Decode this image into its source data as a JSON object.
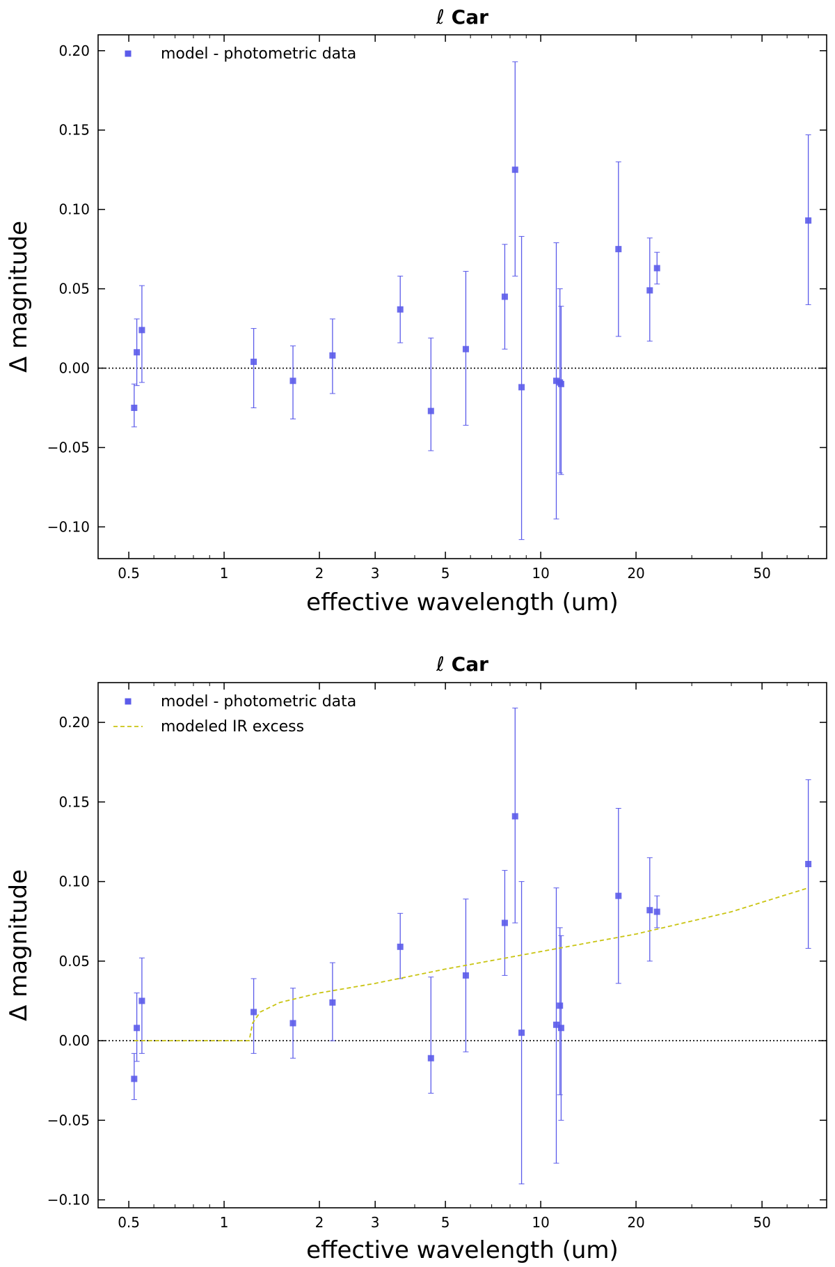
{
  "chart_data": [
    {
      "type": "scatter",
      "title_prefix": "ℓ",
      "title_main": "Car",
      "xlabel": "effective wavelength (um)",
      "ylabel": "Δ magnitude",
      "xscale": "log",
      "xlim": [
        0.4,
        80
      ],
      "ylim": [
        -0.12,
        0.21
      ],
      "yticks": [
        -0.1,
        -0.05,
        0.0,
        0.05,
        0.1,
        0.15,
        0.2
      ],
      "ytick_labels": [
        "−0.10",
        "−0.05",
        "0.00",
        "0.05",
        "0.10",
        "0.15",
        "0.20"
      ],
      "xticks": [
        0.5,
        1,
        2,
        3,
        5,
        10,
        20,
        50
      ],
      "xtick_labels": [
        "0.5",
        "1",
        "2",
        "3",
        "5",
        "10",
        "20",
        "50"
      ],
      "zero_line": true,
      "legend_position": "top-left",
      "series": [
        {
          "name": "model - photometric data",
          "kind": "errorbar",
          "color": "#5b5bea",
          "points": [
            {
              "x": 0.52,
              "y": -0.025,
              "lo": -0.037,
              "hi": -0.01
            },
            {
              "x": 0.53,
              "y": 0.01,
              "lo": -0.011,
              "hi": 0.031
            },
            {
              "x": 0.55,
              "y": 0.024,
              "lo": -0.009,
              "hi": 0.052
            },
            {
              "x": 1.24,
              "y": 0.004,
              "lo": -0.025,
              "hi": 0.025
            },
            {
              "x": 1.65,
              "y": -0.008,
              "lo": -0.032,
              "hi": 0.014
            },
            {
              "x": 2.2,
              "y": 0.008,
              "lo": -0.016,
              "hi": 0.031
            },
            {
              "x": 3.6,
              "y": 0.037,
              "lo": 0.016,
              "hi": 0.058
            },
            {
              "x": 4.5,
              "y": -0.027,
              "lo": -0.052,
              "hi": 0.019
            },
            {
              "x": 5.8,
              "y": 0.012,
              "lo": -0.036,
              "hi": 0.061
            },
            {
              "x": 7.7,
              "y": 0.045,
              "lo": 0.012,
              "hi": 0.078
            },
            {
              "x": 8.3,
              "y": 0.125,
              "lo": 0.058,
              "hi": 0.193
            },
            {
              "x": 8.7,
              "y": -0.012,
              "lo": -0.108,
              "hi": 0.083
            },
            {
              "x": 11.2,
              "y": -0.008,
              "lo": -0.095,
              "hi": 0.079
            },
            {
              "x": 11.5,
              "y": -0.009,
              "lo": -0.066,
              "hi": 0.05
            },
            {
              "x": 11.6,
              "y": -0.01,
              "lo": -0.067,
              "hi": 0.039
            },
            {
              "x": 17.6,
              "y": 0.075,
              "lo": 0.02,
              "hi": 0.13
            },
            {
              "x": 22.1,
              "y": 0.049,
              "lo": 0.017,
              "hi": 0.082
            },
            {
              "x": 23.3,
              "y": 0.063,
              "lo": 0.053,
              "hi": 0.073
            },
            {
              "x": 70.0,
              "y": 0.093,
              "lo": 0.04,
              "hi": 0.147
            }
          ]
        }
      ]
    },
    {
      "type": "scatter",
      "title_prefix": "ℓ",
      "title_main": "Car",
      "xlabel": "effective wavelength (um)",
      "ylabel": "Δ magnitude",
      "xscale": "log",
      "xlim": [
        0.4,
        80
      ],
      "ylim": [
        -0.105,
        0.225
      ],
      "yticks": [
        -0.1,
        -0.05,
        0.0,
        0.05,
        0.1,
        0.15,
        0.2
      ],
      "ytick_labels": [
        "−0.10",
        "−0.05",
        "0.00",
        "0.05",
        "0.10",
        "0.15",
        "0.20"
      ],
      "xticks": [
        0.5,
        1,
        2,
        3,
        5,
        10,
        20,
        50
      ],
      "xtick_labels": [
        "0.5",
        "1",
        "2",
        "3",
        "5",
        "10",
        "20",
        "50"
      ],
      "zero_line": true,
      "legend_position": "top-left",
      "series": [
        {
          "name": "model - photometric data",
          "kind": "errorbar",
          "color": "#5b5bea",
          "points": [
            {
              "x": 0.52,
              "y": -0.024,
              "lo": -0.037,
              "hi": -0.008
            },
            {
              "x": 0.53,
              "y": 0.008,
              "lo": -0.013,
              "hi": 0.03
            },
            {
              "x": 0.55,
              "y": 0.025,
              "lo": -0.008,
              "hi": 0.052
            },
            {
              "x": 1.24,
              "y": 0.018,
              "lo": -0.008,
              "hi": 0.039
            },
            {
              "x": 1.65,
              "y": 0.011,
              "lo": -0.011,
              "hi": 0.033
            },
            {
              "x": 2.2,
              "y": 0.024,
              "lo": 0.0,
              "hi": 0.049
            },
            {
              "x": 3.6,
              "y": 0.059,
              "lo": 0.039,
              "hi": 0.08
            },
            {
              "x": 4.5,
              "y": -0.011,
              "lo": -0.033,
              "hi": 0.04
            },
            {
              "x": 5.8,
              "y": 0.041,
              "lo": -0.007,
              "hi": 0.089
            },
            {
              "x": 7.7,
              "y": 0.074,
              "lo": 0.041,
              "hi": 0.107
            },
            {
              "x": 8.3,
              "y": 0.141,
              "lo": 0.074,
              "hi": 0.209
            },
            {
              "x": 8.7,
              "y": 0.005,
              "lo": -0.09,
              "hi": 0.1
            },
            {
              "x": 11.2,
              "y": 0.01,
              "lo": -0.077,
              "hi": 0.096
            },
            {
              "x": 11.5,
              "y": 0.022,
              "lo": -0.034,
              "hi": 0.071
            },
            {
              "x": 11.6,
              "y": 0.008,
              "lo": -0.05,
              "hi": 0.066
            },
            {
              "x": 17.6,
              "y": 0.091,
              "lo": 0.036,
              "hi": 0.146
            },
            {
              "x": 22.1,
              "y": 0.082,
              "lo": 0.05,
              "hi": 0.115
            },
            {
              "x": 23.3,
              "y": 0.081,
              "lo": 0.071,
              "hi": 0.091
            },
            {
              "x": 70.0,
              "y": 0.111,
              "lo": 0.058,
              "hi": 0.164
            }
          ]
        },
        {
          "name": "modeled IR excess",
          "kind": "dashed-line",
          "color": "#c9c412",
          "points": [
            {
              "x": 0.52,
              "y": 0.0
            },
            {
              "x": 1.0,
              "y": 0.0
            },
            {
              "x": 1.2,
              "y": 0.0
            },
            {
              "x": 1.23,
              "y": 0.011
            },
            {
              "x": 1.3,
              "y": 0.018
            },
            {
              "x": 1.5,
              "y": 0.024
            },
            {
              "x": 2.0,
              "y": 0.03
            },
            {
              "x": 3.0,
              "y": 0.036
            },
            {
              "x": 5.0,
              "y": 0.045
            },
            {
              "x": 10.0,
              "y": 0.056
            },
            {
              "x": 20.0,
              "y": 0.067
            },
            {
              "x": 40.0,
              "y": 0.081
            },
            {
              "x": 70.0,
              "y": 0.096
            }
          ]
        }
      ]
    }
  ]
}
